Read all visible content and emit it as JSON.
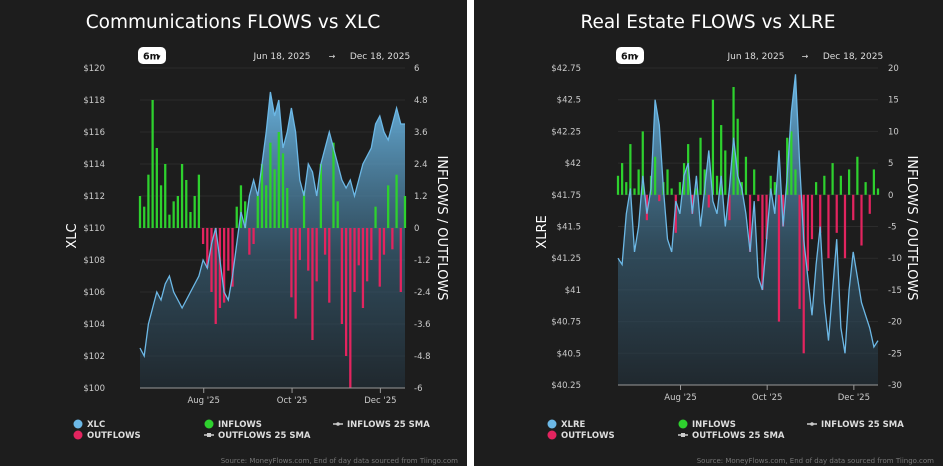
{
  "charts_meta": {
    "range_button": "6m",
    "start_date": "Jun 18, 2025",
    "end_date": "Dec 18, 2025",
    "date_arrow": "→",
    "source": "Source: MoneyFlows.com, End of day data sourced from Tiingo.com"
  },
  "colors": {
    "price": "#6cb8e6",
    "inflows": "#2ed12e",
    "outflows": "#e3245f",
    "background": "#1d1d1d"
  },
  "chart_data": [
    {
      "type": "bar+area",
      "title": "Communications FLOWS vs XLC",
      "ylabel_left": "XLC",
      "ylabel_right": "INFLOWS / OUTFLOWS",
      "left_ticks": [
        "$100",
        "$102",
        "$104",
        "$106",
        "$108",
        "$110",
        "$112",
        "$114",
        "$116",
        "$118",
        "$120"
      ],
      "left_ylim": [
        100,
        120
      ],
      "right_ticks": [
        "-6",
        "-4.8",
        "-3.6",
        "-2.4",
        "-1.2",
        "0",
        "1.2",
        "2.4",
        "3.6",
        "4.8",
        "6"
      ],
      "right_ylim": [
        -6,
        6
      ],
      "x_ticks": [
        {
          "label": "Aug '25",
          "date": "2025-08-01"
        },
        {
          "label": "Oct '25",
          "date": "2025-10-01"
        },
        {
          "label": "Dec '25",
          "date": "2025-12-01"
        }
      ],
      "x_range": [
        "2025-06-18",
        "2025-12-18"
      ],
      "legend": [
        "XLC",
        "OUTFLOWS",
        "INFLOWS",
        "OUTFLOWS 25 SMA",
        "INFLOWS 25 SMA"
      ],
      "price": [
        102.5,
        102,
        104,
        105,
        106,
        105.5,
        106.5,
        107,
        106,
        105.5,
        105,
        105.5,
        106,
        106.5,
        107,
        108,
        107.5,
        109,
        110,
        108,
        106,
        105.5,
        107,
        109,
        111,
        110,
        112,
        113,
        112,
        114,
        116,
        118.5,
        117,
        118,
        115,
        116,
        117.5,
        116,
        113,
        112,
        114,
        113.5,
        112,
        114,
        115,
        116,
        115,
        114,
        113,
        112.5,
        113,
        112,
        113,
        114,
        114.5,
        115,
        116.5,
        117,
        116,
        115.5,
        116.5,
        117.5,
        116.5,
        116.5
      ],
      "flows": [
        1.2,
        0.8,
        2,
        4.8,
        3,
        1.6,
        2.4,
        0.5,
        1,
        1.2,
        2.4,
        1.8,
        0.6,
        1.2,
        2,
        -0.6,
        -1.5,
        -2.4,
        -3.6,
        -3,
        -2.8,
        -1.6,
        -2.2,
        0.8,
        1.6,
        1,
        -1,
        -0.6,
        1.2,
        2.4,
        1.6,
        3.2,
        2.2,
        3.6,
        2.8,
        1.5,
        -2.6,
        -3.4,
        -1.2,
        1.4,
        -1.6,
        -4.2,
        -2,
        2.4,
        -1,
        -2.8,
        3.2,
        1,
        -3.6,
        -4.8,
        -6,
        -2.4,
        -1.4,
        -3,
        -2,
        -1.2,
        0.8,
        -2.2,
        -1,
        1.6,
        -0.8,
        2,
        -2.4,
        1.2
      ]
    },
    {
      "type": "bar+area",
      "title": "Real Estate FLOWS vs XLRE",
      "ylabel_left": "XLRE",
      "ylabel_right": "INFLOWS / OUTFLOWS",
      "left_ticks": [
        "$40.25",
        "$40.5",
        "$40.75",
        "$41",
        "$41.25",
        "$41.5",
        "$41.75",
        "$42",
        "$42.25",
        "$42.5",
        "$42.75"
      ],
      "left_ylim": [
        40.25,
        42.75
      ],
      "right_ticks": [
        "-30",
        "-25",
        "-20",
        "-15",
        "-10",
        "-5",
        "0",
        "5",
        "10",
        "15",
        "20"
      ],
      "right_ylim": [
        -30,
        20
      ],
      "x_ticks": [
        {
          "label": "Aug '25",
          "date": "2025-08-01"
        },
        {
          "label": "Oct '25",
          "date": "2025-10-01"
        },
        {
          "label": "Dec '25",
          "date": "2025-12-01"
        }
      ],
      "x_range": [
        "2025-06-18",
        "2025-12-18"
      ],
      "legend": [
        "XLRE",
        "OUTFLOWS",
        "INFLOWS",
        "OUTFLOWS 25 SMA",
        "INFLOWS 25 SMA"
      ],
      "price": [
        41.25,
        41.2,
        41.6,
        41.8,
        41.3,
        41.5,
        41.9,
        41.6,
        41.8,
        42.5,
        42.3,
        41.8,
        41.4,
        41.3,
        41.7,
        41.6,
        41.9,
        42,
        41.6,
        41.9,
        41.5,
        41.8,
        42.1,
        41.7,
        41.6,
        41.9,
        41.5,
        41.8,
        42.2,
        41.9,
        41.8,
        41.6,
        41.3,
        41.7,
        41.1,
        41,
        41.4,
        41.8,
        41.6,
        42.1,
        41.5,
        41.9,
        42.4,
        42.7,
        42,
        41.4,
        41.1,
        40.8,
        41.2,
        41.5,
        40.9,
        40.6,
        41,
        41.4,
        40.7,
        40.5,
        41,
        41.3,
        41.1,
        40.9,
        40.8,
        40.7,
        40.55,
        40.6
      ],
      "flows": [
        3,
        5,
        2,
        8,
        1,
        4,
        10,
        -4,
        3,
        6,
        -1,
        2,
        4,
        1,
        -6,
        2,
        5,
        8,
        -3,
        1,
        9,
        4,
        -2,
        15,
        3,
        11,
        7,
        -4,
        17,
        12,
        2,
        6,
        -9,
        4,
        -1,
        -15,
        -7,
        3,
        2,
        -20,
        -5,
        9,
        10,
        4,
        -18,
        -25,
        -12,
        -7,
        2,
        -6,
        3,
        -10,
        5,
        -6,
        3,
        -10,
        4,
        -4,
        6,
        -8,
        2,
        -3,
        4,
        1
      ]
    }
  ]
}
